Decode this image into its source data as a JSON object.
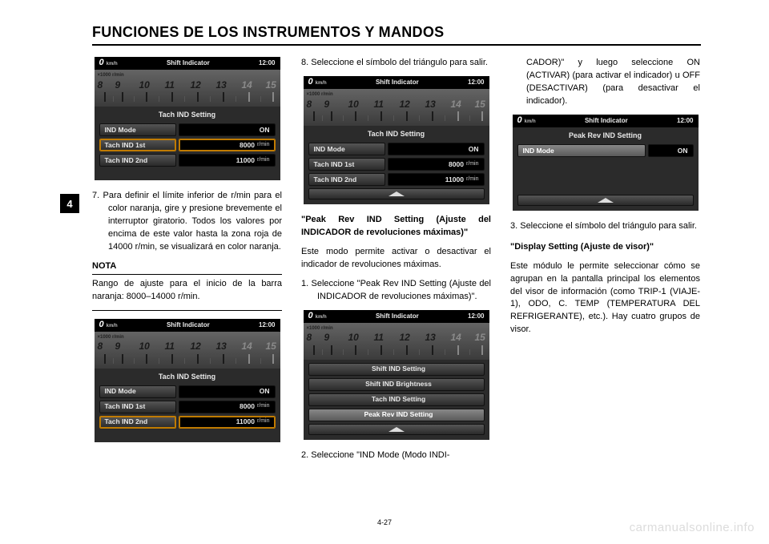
{
  "page": {
    "title": "FUNCIONES DE LOS INSTRUMENTOS Y MANDOS",
    "chapter_tab": "4",
    "page_number": "4-27",
    "watermark": "carmanualsonline.info"
  },
  "lcd_common": {
    "speed_zero": "0",
    "kmh": "km/h",
    "top_title": "Shift Indicator",
    "clock": "12:00",
    "rpm_label": "×1000 r/min",
    "tach_numbers": [
      "8",
      "9",
      "10",
      "11",
      "12",
      "13",
      "14",
      "15"
    ],
    "tach_positions": [
      4,
      26,
      56,
      88,
      120,
      152,
      184,
      214
    ],
    "tach_dim_from_index": 6
  },
  "tach_setting": {
    "subtitle": "Tach IND Setting",
    "rows": [
      {
        "label": "IND Mode",
        "value": "ON",
        "unit": ""
      },
      {
        "label": "Tach IND 1st",
        "value": "8000",
        "unit": "r/min"
      },
      {
        "label": "Tach IND 2nd",
        "value": "11000",
        "unit": "r/min"
      }
    ]
  },
  "peak_setting": {
    "subtitle": "Peak Rev IND Setting",
    "row": {
      "label": "IND Mode",
      "value": "ON"
    }
  },
  "menu": {
    "items": [
      {
        "label": "Shift IND Setting",
        "hl": false
      },
      {
        "label": "Shift IND Brightness",
        "hl": false
      },
      {
        "label": "Tach IND Setting",
        "hl": false
      },
      {
        "label": "Peak Rev IND Setting",
        "hl": true
      }
    ]
  },
  "col1": {
    "item7": "7. Para definir el límite inferior de r/min para el color naranja, gire y presione brevemente el interruptor giratorio. Todos los valores por encima de este valor hasta la zona roja de 14000 r/min, se visualizará en color naranja.",
    "nota_head": "NOTA",
    "nota_body": "Rango de ajuste para el inicio de la barra naranja: 8000–14000 r/min."
  },
  "col2": {
    "item8": "8. Seleccione el símbolo del triángulo para salir.",
    "sub1": "\"Peak Rev IND Setting (Ajuste del INDICADOR de revoluciones máximas)\"",
    "p1": "Este modo permite activar o desactivar el indicador de revoluciones máximas.",
    "item1": "1. Seleccione \"Peak Rev IND Setting (Ajuste del INDICADOR de revoluciones máximas)\".",
    "item2": "2. Seleccione \"IND Mode (Modo INDI-"
  },
  "col3": {
    "cont": "CADOR)\" y luego seleccione ON (ACTIVAR) (para activar el indicador) u OFF (DESACTIVAR) (para desactivar el indicador).",
    "item3": "3. Seleccione el símbolo del triángulo para salir.",
    "sub2": "\"Display Setting (Ajuste de visor)\"",
    "p2": "Este módulo le permite seleccionar cómo se agrupan en la pantalla principal los elementos del visor de información (como TRIP-1 (VIAJE-1), ODO, C. TEMP (TEMPERATURA DEL REFRIGERANTE), etc.). Hay cuatro grupos de visor."
  },
  "styling": {
    "page_bg": "#ffffff",
    "text_color": "#000000",
    "rule_color": "#000000",
    "lcd_bg": "#2b2b2b",
    "lcd_top_bg": "#000000",
    "lcd_btn_grad_top": "#555555",
    "lcd_btn_grad_bot": "#2a2a2a",
    "lcd_val_bg": "#000000",
    "lcd_hl_border": "#c07b00",
    "watermark_color": "#dcdcdc",
    "body_fontsize_pt": 8,
    "title_fontsize_pt": 14
  }
}
